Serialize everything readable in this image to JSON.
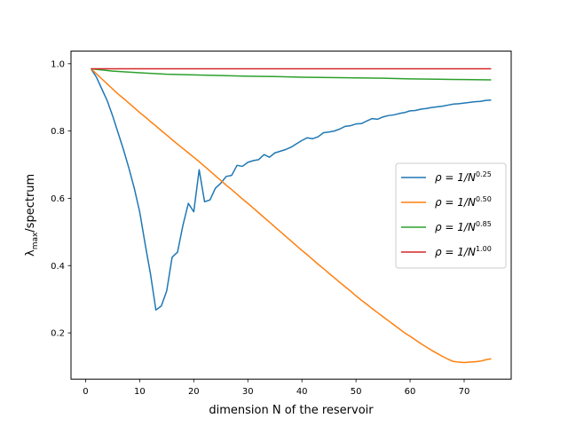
{
  "chart_data": {
    "type": "line",
    "title": "",
    "xlabel": "dimension N of the reservoir",
    "ylabel": {
      "base": "λ",
      "sub": "max",
      "rest": "/spectrum"
    },
    "xlim": [
      -2.7,
      78.7
    ],
    "ylim": [
      0.0625,
      1.0375
    ],
    "xticks": [
      0,
      10,
      20,
      30,
      40,
      50,
      60,
      70
    ],
    "yticks": [
      "0.2",
      "0.4",
      "0.6",
      "0.8",
      "1.0"
    ],
    "ytick_values": [
      0.2,
      0.4,
      0.6,
      0.8,
      1.0
    ],
    "grid": false,
    "legend_position": "center-right",
    "series": [
      {
        "name": "ρ = 1/N^0.25",
        "legend": {
          "prefix": "ρ = 1/N",
          "exp": "0.25"
        },
        "color": "#1f77b4",
        "x": [
          1,
          2,
          3,
          4,
          5,
          6,
          7,
          8,
          9,
          10,
          11,
          12,
          13,
          14,
          15,
          16,
          17,
          18,
          19,
          20,
          21,
          22,
          23,
          24,
          25,
          26,
          27,
          28,
          29,
          30,
          31,
          32,
          33,
          34,
          35,
          36,
          37,
          38,
          39,
          40,
          41,
          42,
          43,
          44,
          45,
          46,
          47,
          48,
          49,
          50,
          51,
          52,
          53,
          54,
          55,
          56,
          57,
          58,
          59,
          60,
          61,
          62,
          63,
          64,
          65,
          66,
          67,
          68,
          69,
          70,
          71,
          72,
          73,
          74,
          75
        ],
        "y": [
          0.985,
          0.96,
          0.925,
          0.89,
          0.845,
          0.795,
          0.745,
          0.69,
          0.63,
          0.56,
          0.465,
          0.375,
          0.268,
          0.28,
          0.325,
          0.425,
          0.44,
          0.52,
          0.585,
          0.56,
          0.685,
          0.59,
          0.595,
          0.63,
          0.645,
          0.665,
          0.668,
          0.698,
          0.695,
          0.707,
          0.712,
          0.715,
          0.73,
          0.722,
          0.735,
          0.74,
          0.745,
          0.752,
          0.762,
          0.772,
          0.78,
          0.777,
          0.783,
          0.795,
          0.797,
          0.8,
          0.806,
          0.814,
          0.816,
          0.821,
          0.822,
          0.83,
          0.837,
          0.835,
          0.842,
          0.846,
          0.848,
          0.852,
          0.855,
          0.86,
          0.861,
          0.865,
          0.867,
          0.87,
          0.872,
          0.874,
          0.877,
          0.88,
          0.881,
          0.883,
          0.885,
          0.887,
          0.888,
          0.891,
          0.892
        ]
      },
      {
        "name": "ρ = 1/N^0.50",
        "legend": {
          "prefix": "ρ = 1/N",
          "exp": "0.50"
        },
        "color": "#ff7f0e",
        "x": [
          1,
          2,
          3,
          4,
          5,
          6,
          7,
          8,
          9,
          10,
          11,
          12,
          13,
          14,
          15,
          16,
          17,
          18,
          19,
          20,
          21,
          22,
          23,
          24,
          25,
          26,
          27,
          28,
          29,
          30,
          31,
          32,
          33,
          34,
          35,
          36,
          37,
          38,
          39,
          40,
          41,
          42,
          43,
          44,
          45,
          46,
          47,
          48,
          49,
          50,
          51,
          52,
          53,
          54,
          55,
          56,
          57,
          58,
          59,
          60,
          61,
          62,
          63,
          64,
          65,
          66,
          67,
          68,
          69,
          70,
          71,
          72,
          73,
          74,
          75
        ],
        "y": [
          0.985,
          0.97,
          0.955,
          0.94,
          0.925,
          0.91,
          0.897,
          0.883,
          0.869,
          0.855,
          0.842,
          0.828,
          0.815,
          0.801,
          0.788,
          0.774,
          0.761,
          0.748,
          0.735,
          0.722,
          0.709,
          0.695,
          0.681,
          0.667,
          0.653,
          0.639,
          0.626,
          0.612,
          0.598,
          0.585,
          0.571,
          0.557,
          0.543,
          0.529,
          0.515,
          0.501,
          0.487,
          0.473,
          0.459,
          0.445,
          0.432,
          0.418,
          0.404,
          0.391,
          0.377,
          0.364,
          0.35,
          0.337,
          0.324,
          0.31,
          0.297,
          0.285,
          0.272,
          0.26,
          0.248,
          0.236,
          0.224,
          0.212,
          0.2,
          0.19,
          0.179,
          0.168,
          0.158,
          0.148,
          0.139,
          0.13,
          0.122,
          0.115,
          0.113,
          0.112,
          0.113,
          0.114,
          0.116,
          0.12,
          0.123
        ]
      },
      {
        "name": "ρ = 1/N^0.85",
        "legend": {
          "prefix": "ρ = 1/N",
          "exp": "0.85"
        },
        "color": "#2ca02c",
        "x": [
          1,
          5,
          10,
          15,
          20,
          25,
          30,
          35,
          40,
          45,
          50,
          55,
          60,
          65,
          70,
          75
        ],
        "y": [
          0.985,
          0.978,
          0.973,
          0.969,
          0.967,
          0.965,
          0.963,
          0.962,
          0.96,
          0.959,
          0.958,
          0.957,
          0.955,
          0.954,
          0.953,
          0.952
        ]
      },
      {
        "name": "ρ = 1/N^1.00",
        "legend": {
          "prefix": "ρ = 1/N",
          "exp": "1.00"
        },
        "color": "#d62728",
        "x": [
          1,
          75
        ],
        "y": [
          0.985,
          0.985
        ]
      }
    ]
  }
}
